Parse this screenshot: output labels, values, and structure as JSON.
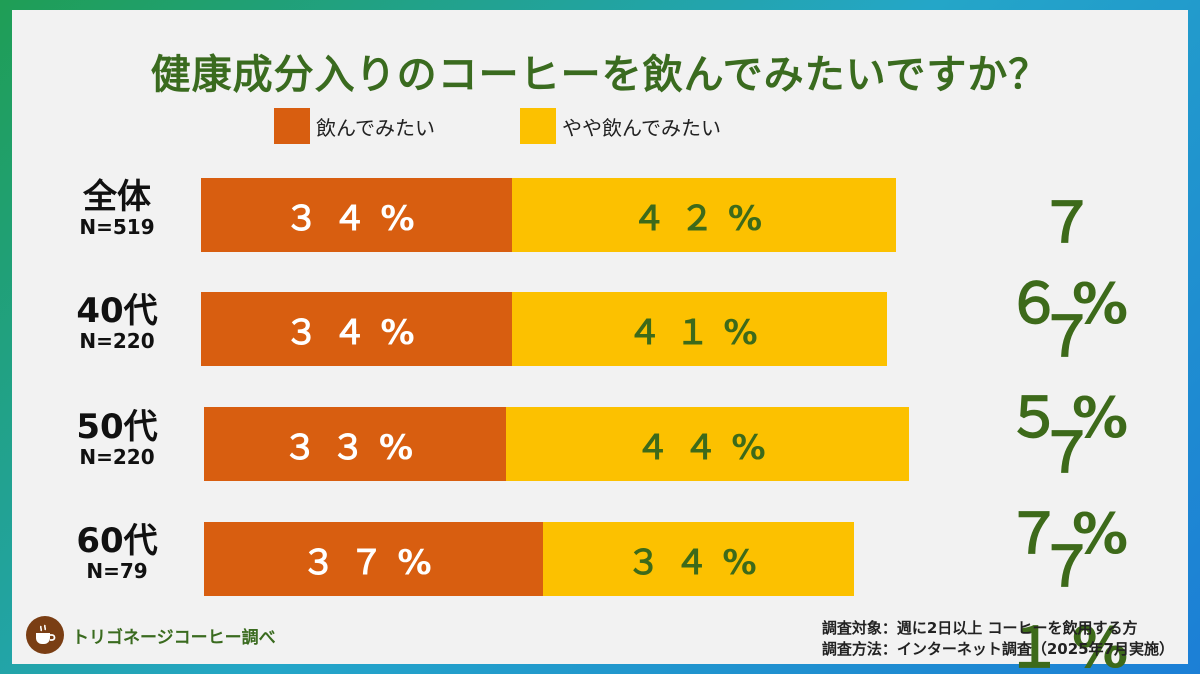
{
  "title": "健康成分入りのコーヒーを飲んでみたいですか？",
  "colors": {
    "series_a": "#d85e10",
    "series_b": "#fcc100",
    "accent_green": "#3d6a1a"
  },
  "legend": [
    {
      "label": "飲んでみたい",
      "color": "#d85e10"
    },
    {
      "label": "やや飲んでみたい",
      "color": "#fcc100"
    }
  ],
  "rows": [
    {
      "label": "全体",
      "n": "N=519",
      "a_text": "３４%",
      "b_text": "４２%",
      "total": "７６%"
    },
    {
      "label": "40代",
      "n": "N=220",
      "a_text": "３４%",
      "b_text": "４１%",
      "total": "７５%"
    },
    {
      "label": "50代",
      "n": "N=220",
      "a_text": "３３%",
      "b_text": "４４%",
      "total": "７７%"
    },
    {
      "label": "60代",
      "n": "N=79",
      "a_text": "３７%",
      "b_text": "３４%",
      "total": "７１%"
    }
  ],
  "chart_data": {
    "type": "bar",
    "orientation": "horizontal",
    "stacked": true,
    "title": "健康成分入りのコーヒーを飲んでみたいですか？",
    "categories": [
      "全体",
      "40代",
      "50代",
      "60代"
    ],
    "sample_sizes": [
      "N=519",
      "N=220",
      "N=220",
      "N=79"
    ],
    "series": [
      {
        "name": "飲んでみたい",
        "values": [
          34,
          34,
          33,
          37
        ]
      },
      {
        "name": "やや飲んでみたい",
        "values": [
          42,
          41,
          44,
          34
        ]
      }
    ],
    "totals": [
      76,
      75,
      77,
      71
    ],
    "unit": "%",
    "legend_position": "top"
  },
  "footer": {
    "brand": "トリゴネージコーヒー調べ",
    "brand_icon": "coffee-cup-icon",
    "note_target": "調査対象：週に2日以上 コーヒーを飲用する方",
    "note_method": "調査方法：インターネット調査（2025年7月実施）"
  }
}
